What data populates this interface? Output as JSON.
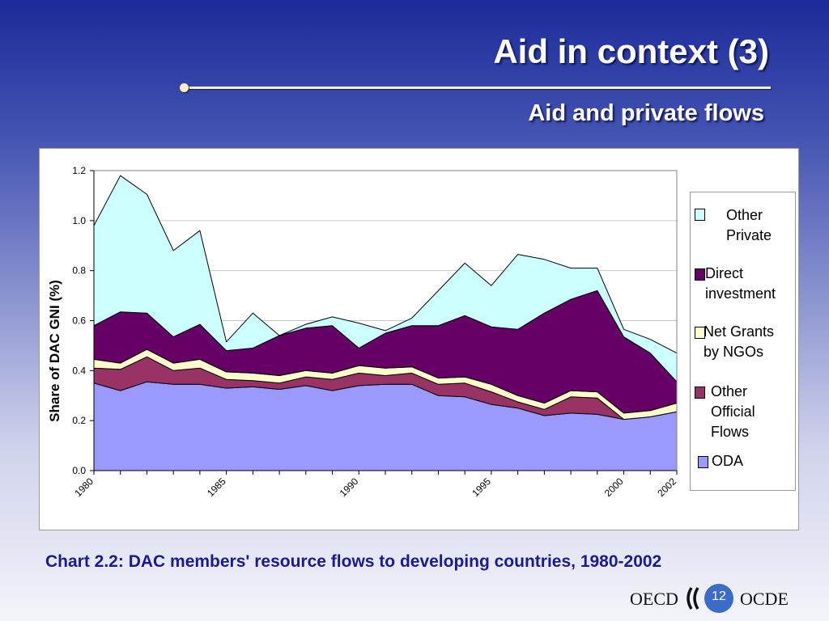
{
  "slide": {
    "title": "Aid in context (3)",
    "subtitle": "Aid and private flows",
    "caption": "Chart 2.2: DAC members' resource flows to developing countries, 1980-2002",
    "page_number": "12",
    "footer_left": "OECD",
    "footer_right": "OCDE"
  },
  "chart_data": {
    "type": "area",
    "stacked": true,
    "title": "",
    "xlabel": "",
    "ylabel": "Share of DAC GNI (%)",
    "x": [
      1980,
      1981,
      1982,
      1983,
      1984,
      1985,
      1986,
      1987,
      1988,
      1989,
      1990,
      1991,
      1992,
      1993,
      1994,
      1995,
      1996,
      1997,
      1998,
      1999,
      2000,
      2001,
      2002
    ],
    "x_tick_labels": [
      "1980",
      "1985",
      "1990",
      "1995",
      "2000",
      "2002"
    ],
    "x_tick_values": [
      1980,
      1985,
      1990,
      1995,
      2000,
      2002
    ],
    "ylim": [
      0,
      1.2
    ],
    "y_ticks": [
      "0.0",
      "0.2",
      "0.4",
      "0.6",
      "0.8",
      "1.0",
      "1.2"
    ],
    "grid": true,
    "legend_position": "right",
    "series": [
      {
        "name": "ODA",
        "color": "#9999ff",
        "values": [
          0.35,
          0.32,
          0.355,
          0.345,
          0.345,
          0.33,
          0.335,
          0.325,
          0.34,
          0.32,
          0.34,
          0.345,
          0.345,
          0.3,
          0.295,
          0.265,
          0.25,
          0.22,
          0.23,
          0.225,
          0.205,
          0.215,
          0.235
        ]
      },
      {
        "name": "Other Official Flows",
        "color": "#993366",
        "values": [
          0.06,
          0.085,
          0.1,
          0.055,
          0.065,
          0.035,
          0.025,
          0.025,
          0.035,
          0.045,
          0.05,
          0.035,
          0.045,
          0.045,
          0.055,
          0.05,
          0.025,
          0.025,
          0.065,
          0.065,
          0.0,
          0.0,
          0.0
        ]
      },
      {
        "name": "Net Grants by NGOs",
        "color": "#ffffcc",
        "values": [
          0.035,
          0.025,
          0.03,
          0.03,
          0.035,
          0.03,
          0.03,
          0.03,
          0.025,
          0.025,
          0.03,
          0.03,
          0.025,
          0.025,
          0.025,
          0.03,
          0.025,
          0.025,
          0.025,
          0.025,
          0.025,
          0.025,
          0.035
        ]
      },
      {
        "name": "Direct investment",
        "color": "#660066",
        "values": [
          0.135,
          0.205,
          0.145,
          0.105,
          0.14,
          0.085,
          0.1,
          0.16,
          0.17,
          0.19,
          0.07,
          0.14,
          0.165,
          0.21,
          0.245,
          0.23,
          0.265,
          0.36,
          0.365,
          0.405,
          0.305,
          0.23,
          0.085
        ]
      },
      {
        "name": "Other Private",
        "color": "#ccffff",
        "values": [
          0.4,
          0.545,
          0.475,
          0.345,
          0.375,
          0.035,
          0.14,
          0.0,
          0.015,
          0.035,
          0.1,
          0.01,
          0.03,
          0.14,
          0.21,
          0.165,
          0.3,
          0.215,
          0.125,
          0.09,
          0.03,
          0.055,
          0.115
        ]
      }
    ]
  },
  "legend": [
    {
      "label": "Other Private",
      "color": "#ccffff",
      "lines": [
        "Other",
        "Private"
      ]
    },
    {
      "label": "Direct investment",
      "color": "#660066",
      "lines": [
        "Direct",
        "investment"
      ]
    },
    {
      "label": "Net Grants by NGOs",
      "color": "#ffffcc",
      "lines": [
        "Net Grants",
        "by NGOs"
      ]
    },
    {
      "label": "Other Official Flows",
      "color": "#993366",
      "lines": [
        "Other",
        "Official",
        "Flows"
      ]
    },
    {
      "label": "ODA",
      "color": "#9999ff",
      "lines": [
        "ODA"
      ]
    }
  ]
}
